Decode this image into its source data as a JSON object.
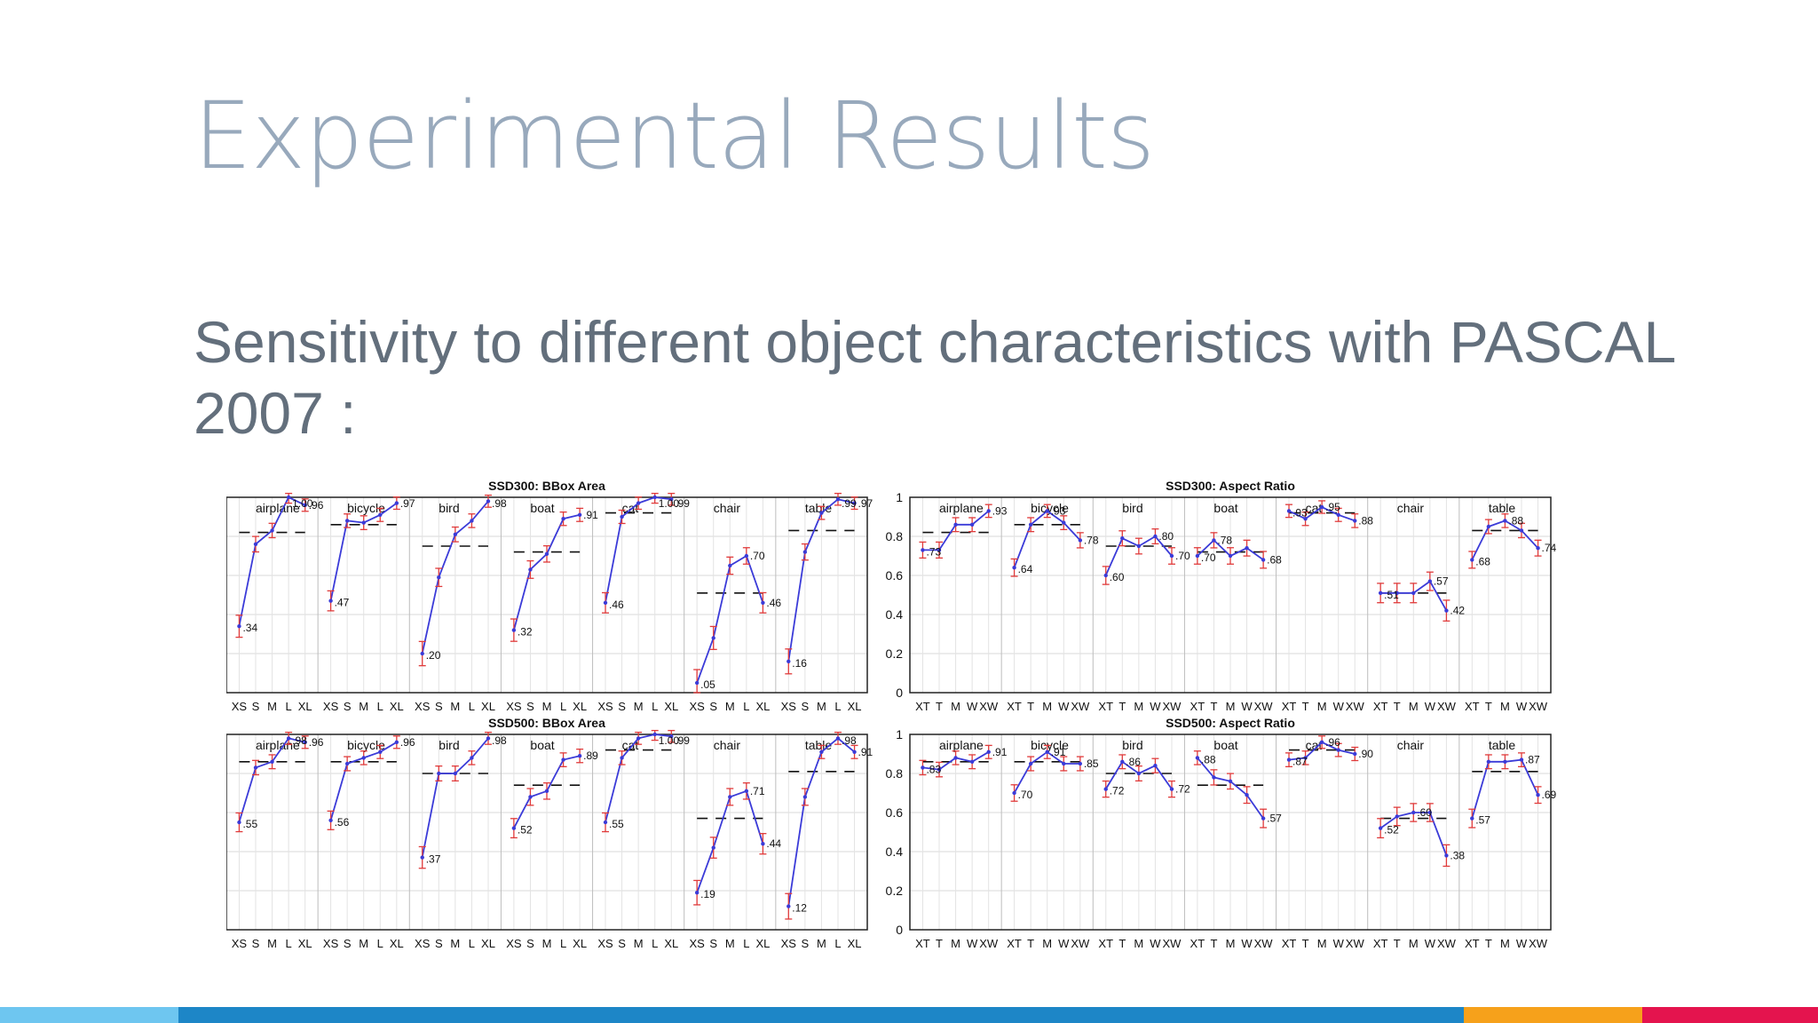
{
  "slide": {
    "title": "Experimental Results",
    "subtitle": "Sensitivity to different object characteristics with PASCAL 2007 :"
  },
  "footer_bar": [
    {
      "color": "#6ec6f0",
      "fraction": 0.098
    },
    {
      "color": "#1d86c7",
      "fraction": 0.707
    },
    {
      "color": "#f6a11b",
      "fraction": 0.098
    },
    {
      "color": "#e4144e",
      "fraction": 0.097
    }
  ],
  "chart_data": [
    {
      "type": "line",
      "title": "SSD300: BBox Area",
      "categories": [
        "airplane",
        "bicycle",
        "bird",
        "boat",
        "cat",
        "chair",
        "table"
      ],
      "x_labels": [
        "XS",
        "S",
        "M",
        "L",
        "XL"
      ],
      "values": [
        [
          0.34,
          0.76,
          0.83,
          1.0,
          0.96
        ],
        [
          0.47,
          0.88,
          0.87,
          0.91,
          0.97
        ],
        [
          0.2,
          0.59,
          0.81,
          0.88,
          0.98
        ],
        [
          0.32,
          0.63,
          0.71,
          0.89,
          0.91
        ],
        [
          0.46,
          0.9,
          0.97,
          1.0,
          0.99
        ],
        [
          0.05,
          0.28,
          0.65,
          0.7,
          0.46
        ],
        [
          0.16,
          0.72,
          0.92,
          0.99,
          0.97
        ]
      ],
      "overall": [
        0.82,
        0.86,
        0.75,
        0.72,
        0.92,
        0.51,
        0.83
      ],
      "ylim": [
        0,
        1
      ],
      "yticks": [
        "0",
        "0.2",
        "0.4",
        "0.6",
        "0.8",
        "1"
      ]
    },
    {
      "type": "line",
      "title": "SSD300: Aspect Ratio",
      "categories": [
        "airplane",
        "bicycle",
        "bird",
        "boat",
        "cat",
        "chair",
        "table"
      ],
      "x_labels": [
        "XT",
        "T",
        "M",
        "W",
        "XW"
      ],
      "values": [
        [
          0.73,
          0.73,
          0.86,
          0.86,
          0.93
        ],
        [
          0.64,
          0.86,
          0.93,
          0.87,
          0.78
        ],
        [
          0.6,
          0.79,
          0.75,
          0.8,
          0.7
        ],
        [
          0.7,
          0.78,
          0.7,
          0.74,
          0.68
        ],
        [
          0.93,
          0.89,
          0.95,
          0.91,
          0.88
        ],
        [
          0.51,
          0.51,
          0.51,
          0.57,
          0.42
        ],
        [
          0.68,
          0.85,
          0.88,
          0.83,
          0.74
        ]
      ],
      "overall": [
        0.82,
        0.86,
        0.75,
        0.72,
        0.92,
        0.51,
        0.83
      ],
      "ylim": [
        0,
        1
      ],
      "yticks": [
        "0",
        "0.2",
        "0.4",
        "0.6",
        "0.8",
        "1"
      ]
    },
    {
      "type": "line",
      "title": "SSD500: BBox Area",
      "categories": [
        "airplane",
        "bicycle",
        "bird",
        "boat",
        "cat",
        "chair",
        "table"
      ],
      "x_labels": [
        "XS",
        "S",
        "M",
        "L",
        "XL"
      ],
      "values": [
        [
          0.55,
          0.83,
          0.86,
          0.98,
          0.96
        ],
        [
          0.56,
          0.85,
          0.88,
          0.91,
          0.96
        ],
        [
          0.37,
          0.8,
          0.8,
          0.88,
          0.98
        ],
        [
          0.52,
          0.68,
          0.71,
          0.87,
          0.89
        ],
        [
          0.55,
          0.88,
          0.98,
          1.0,
          0.99
        ],
        [
          0.19,
          0.42,
          0.68,
          0.71,
          0.44
        ],
        [
          0.12,
          0.68,
          0.91,
          0.98,
          0.91
        ]
      ],
      "overall": [
        0.86,
        0.86,
        0.8,
        0.74,
        0.92,
        0.57,
        0.81
      ],
      "ylim": [
        0,
        1
      ],
      "yticks": [
        "0",
        "0.2",
        "0.4",
        "0.6",
        "0.8",
        "1"
      ]
    },
    {
      "type": "line",
      "title": "SSD500: Aspect Ratio",
      "categories": [
        "airplane",
        "bicycle",
        "bird",
        "boat",
        "cat",
        "chair",
        "table"
      ],
      "x_labels": [
        "XT",
        "T",
        "M",
        "W",
        "XW"
      ],
      "values": [
        [
          0.83,
          0.82,
          0.88,
          0.86,
          0.91
        ],
        [
          0.7,
          0.85,
          0.91,
          0.85,
          0.85
        ],
        [
          0.72,
          0.86,
          0.8,
          0.84,
          0.72
        ],
        [
          0.88,
          0.78,
          0.76,
          0.69,
          0.57
        ],
        [
          0.87,
          0.88,
          0.96,
          0.92,
          0.9
        ],
        [
          0.52,
          0.58,
          0.6,
          0.6,
          0.38
        ],
        [
          0.57,
          0.86,
          0.86,
          0.87,
          0.69
        ]
      ],
      "overall": [
        0.86,
        0.86,
        0.8,
        0.74,
        0.92,
        0.57,
        0.81
      ],
      "ylim": [
        0,
        1
      ],
      "yticks": [
        "0",
        "0.2",
        "0.4",
        "0.6",
        "0.8",
        "1"
      ]
    }
  ]
}
